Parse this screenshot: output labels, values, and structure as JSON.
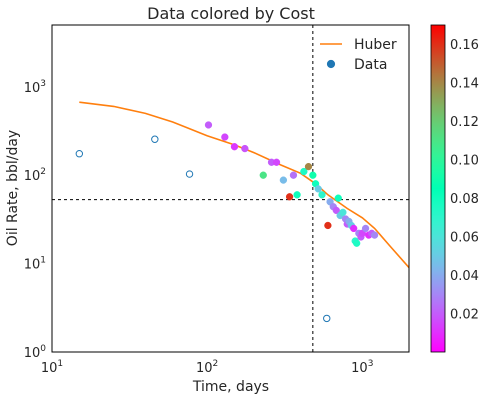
{
  "chart_data": {
    "type": "scatter",
    "title": "Data colored by Cost",
    "xlabel": "Time, days",
    "ylabel": "Oil Rate, bbl/day",
    "xscale": "log",
    "yscale": "log",
    "xlim": [
      10,
      2000
    ],
    "ylim": [
      1,
      5000
    ],
    "x_tick_labels": [
      {
        "value": 10,
        "base": "10",
        "exp": "1"
      },
      {
        "value": 100,
        "base": "10",
        "exp": "2"
      },
      {
        "value": 1000,
        "base": "10",
        "exp": "3"
      }
    ],
    "y_tick_labels": [
      {
        "value": 1,
        "base": "10",
        "exp": "0"
      },
      {
        "value": 10,
        "base": "10",
        "exp": "1"
      },
      {
        "value": 100,
        "base": "10",
        "exp": "2"
      },
      {
        "value": 1000,
        "base": "10",
        "exp": "3"
      }
    ],
    "grid": false,
    "legend": {
      "placement": "top-right",
      "entries": [
        {
          "label": "Huber",
          "kind": "line",
          "color": "#ff7f0e"
        },
        {
          "label": "Data",
          "kind": "marker",
          "color": "#1f77b4"
        }
      ]
    },
    "reference_lines": {
      "vertical_x": 480,
      "horizontal_y": 53
    },
    "fit_line": {
      "name": "Huber",
      "color": "#ff7f0e",
      "x": [
        15,
        25,
        40,
        60,
        100,
        150,
        200,
        300,
        400,
        500,
        600,
        800,
        1000,
        1200,
        1500,
        2000
      ],
      "y": [
        670,
        600,
        500,
        400,
        280,
        220,
        180,
        130,
        105,
        80,
        60,
        42,
        33,
        25,
        16,
        9
      ]
    },
    "excluded_points": {
      "style": "hollow",
      "color": "#1f77b4",
      "x": [
        15,
        46,
        77,
        590
      ],
      "y": [
        175,
        255,
        103,
        2.4
      ]
    },
    "points": {
      "colorbar": {
        "cmap": "rainbow",
        "range": [
          0,
          0.17
        ],
        "ticks": [
          0.02,
          0.04,
          0.06,
          0.08,
          0.1,
          0.12,
          0.14,
          0.16
        ],
        "tick_labels": [
          "0.02",
          "0.04",
          "0.06",
          "0.08",
          "0.10",
          "0.12",
          "0.14",
          "0.16"
        ]
      },
      "x": [
        102,
        130,
        150,
        175,
        230,
        260,
        280,
        310,
        340,
        360,
        380,
        420,
        450,
        480,
        500,
        520,
        550,
        600,
        620,
        650,
        680,
        700,
        720,
        750,
        780,
        800,
        820,
        850,
        880,
        900,
        920,
        950,
        980,
        1000,
        1050,
        1100,
        1150,
        1200
      ],
      "cost": [
        0.02,
        0.015,
        0.012,
        0.018,
        0.11,
        0.02,
        0.015,
        0.045,
        0.16,
        0.025,
        0.08,
        0.075,
        0.14,
        0.09,
        0.08,
        0.05,
        0.07,
        0.16,
        0.04,
        0.03,
        0.02,
        0.08,
        0.05,
        0.06,
        0.03,
        0.02,
        0.04,
        0.05,
        0.01,
        0.07,
        0.075,
        0.03,
        0.02,
        0.015,
        0.03,
        0.01,
        0.02,
        0.03
      ],
      "y": [
        370,
        270,
        210,
        200,
        100,
        140,
        140,
        88,
        57,
        100,
        60,
        110,
        125,
        100,
        80,
        70,
        60,
        27,
        50,
        44,
        40,
        55,
        35,
        38,
        32,
        28,
        30,
        27,
        25,
        18,
        17,
        22,
        20,
        22,
        25,
        21,
        22,
        21
      ]
    }
  }
}
